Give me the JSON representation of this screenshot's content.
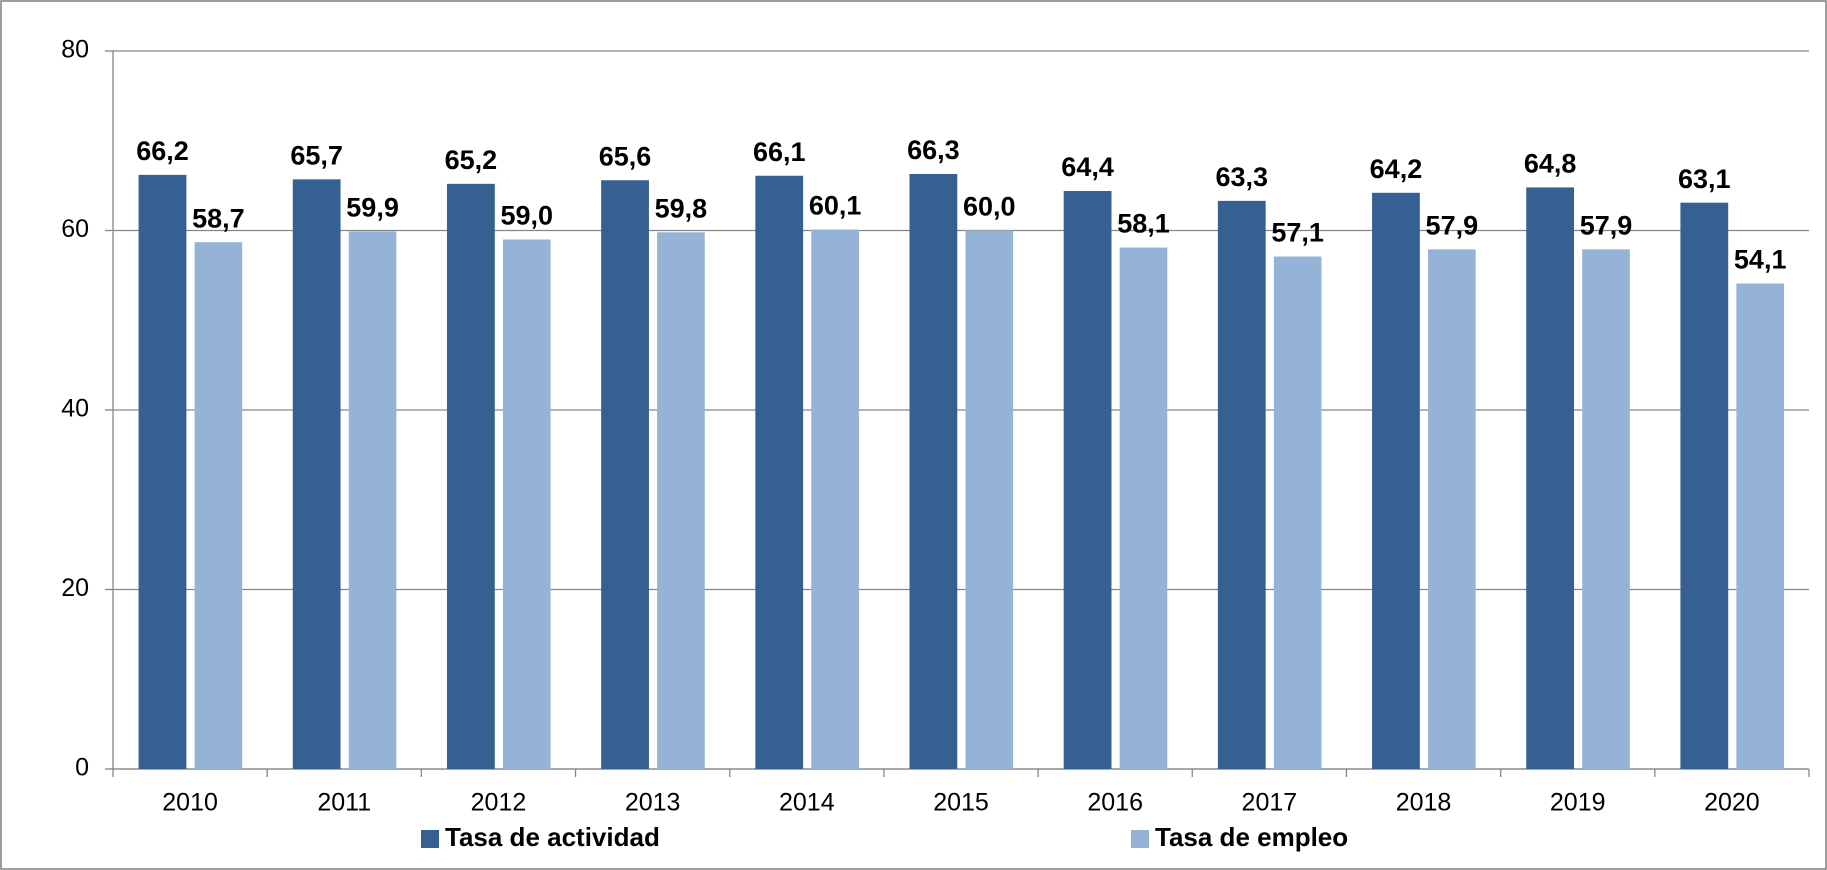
{
  "chart_data": {
    "type": "bar",
    "categories": [
      "2010",
      "2011",
      "2012",
      "2013",
      "2014",
      "2015",
      "2016",
      "2017",
      "2018",
      "2019",
      "2020"
    ],
    "series": [
      {
        "name": "Tasa de actividad",
        "color": "#376092",
        "values": [
          66.2,
          65.7,
          65.2,
          65.6,
          66.1,
          66.3,
          64.4,
          63.3,
          64.2,
          64.8,
          63.1
        ],
        "value_labels": [
          "66,2",
          "65,7",
          "65,2",
          "65,6",
          "66,1",
          "66,3",
          "64,4",
          "63,3",
          "64,2",
          "64,8",
          "63,1"
        ]
      },
      {
        "name": "Tasa de empleo",
        "color": "#95b3d7",
        "values": [
          58.7,
          59.9,
          59.0,
          59.8,
          60.1,
          60.0,
          58.1,
          57.1,
          57.9,
          57.9,
          54.1
        ],
        "value_labels": [
          "58,7",
          "59,9",
          "59,0",
          "59,8",
          "60,1",
          "60,0",
          "58,1",
          "57,1",
          "57,9",
          "57,9",
          "54,1"
        ]
      }
    ],
    "ylim": [
      0,
      80
    ],
    "yticks": [
      0,
      20,
      40,
      60,
      80
    ],
    "grid": true,
    "legend": "bottom"
  }
}
